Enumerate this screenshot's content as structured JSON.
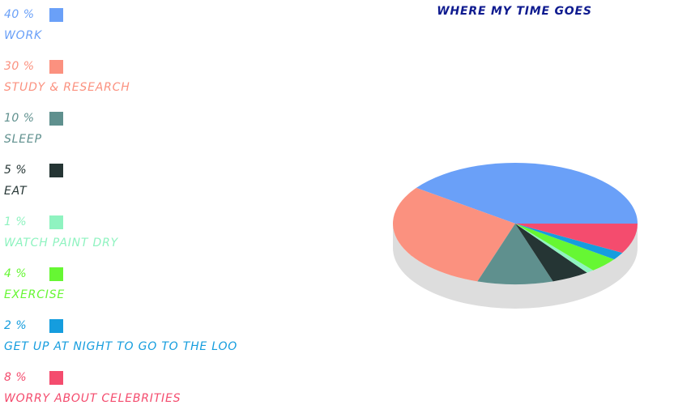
{
  "chart_data": {
    "type": "pie",
    "title": "WHERE MY TIME GOES",
    "series": [
      {
        "name": "WORK",
        "value": 40,
        "value_label": "40 %",
        "color": "#6aa0f8"
      },
      {
        "name": "STUDY & RESEARCH",
        "value": 30,
        "value_label": "30 %",
        "color": "#fb917f"
      },
      {
        "name": "SLEEP",
        "value": 10,
        "value_label": "10 %",
        "color": "#5f908e"
      },
      {
        "name": "EAT",
        "value": 5,
        "value_label": "5 %",
        "color": "#253534"
      },
      {
        "name": "WATCH PAINT DRY",
        "value": 1,
        "value_label": "1 %",
        "color": "#8ff3c0"
      },
      {
        "name": "EXERCISE",
        "value": 4,
        "value_label": "4 %",
        "color": "#66f733"
      },
      {
        "name": "GET UP AT NIGHT TO GO TO THE LOO",
        "value": 2,
        "value_label": "2 %",
        "color": "#159dde"
      },
      {
        "name": "WORRY ABOUT CELEBRITIES",
        "value": 8,
        "value_label": "8 %",
        "color": "#f44c6e"
      }
    ],
    "style": "3d",
    "legend_position": "left",
    "side_color": "#dddddd"
  }
}
